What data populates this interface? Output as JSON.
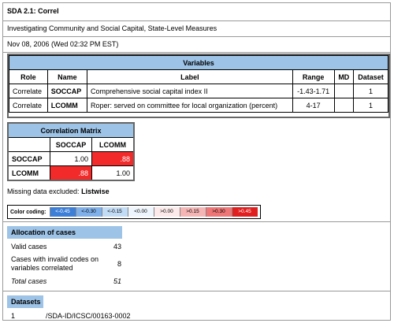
{
  "header": {
    "title": "SDA 2.1: Correl",
    "subtitle": "Investigating Community and Social Capital, State-Level Measures",
    "date": "Nov 08, 2006 (Wed 02:32 PM EST)"
  },
  "variables": {
    "heading": "Variables",
    "columns": [
      "Role",
      "Name",
      "Label",
      "Range",
      "MD",
      "Dataset"
    ],
    "rows": [
      {
        "role": "Correlate",
        "name": "SOCCAP",
        "label": "Comprehensive social capital index II",
        "range": "-1.43-1.71",
        "md": "",
        "dataset": "1"
      },
      {
        "role": "Correlate",
        "name": "LCOMM",
        "label": "Roper: served on committee for local organization (percent)",
        "range": "4-17",
        "md": "",
        "dataset": "1"
      }
    ]
  },
  "correlation": {
    "heading": "Correlation Matrix",
    "cols": [
      "SOCCAP",
      "LCOMM"
    ],
    "rows": [
      {
        "name": "SOCCAP",
        "values": [
          "1.00",
          ".88"
        ]
      },
      {
        "name": "LCOMM",
        "values": [
          ".88",
          "1.00"
        ]
      }
    ],
    "high_color": "#f22a2a"
  },
  "missing": {
    "label": "Missing data excluded:",
    "value": "Listwise"
  },
  "coding": {
    "label": "Color coding:",
    "swatches": [
      {
        "text": "<-0.45",
        "color": "#3d7fd6",
        "fg": "#ffffff"
      },
      {
        "text": "<-0.30",
        "color": "#7fb0ea",
        "fg": "#000000"
      },
      {
        "text": "<-0.15",
        "color": "#c2dcf5",
        "fg": "#000000"
      },
      {
        "text": "<0.00",
        "color": "#eef5fc",
        "fg": "#000000"
      },
      {
        "text": ">0.00",
        "color": "#fce9e9",
        "fg": "#000000"
      },
      {
        "text": ">0.15",
        "color": "#f5b5b5",
        "fg": "#000000"
      },
      {
        "text": ">0.30",
        "color": "#ee7676",
        "fg": "#000000"
      },
      {
        "text": ">0.45",
        "color": "#e02020",
        "fg": "#ffffff"
      }
    ]
  },
  "allocation": {
    "heading": "Allocation of cases",
    "valid_label": "Valid cases",
    "valid_value": "43",
    "invalid_label_1": "Cases with invalid codes on",
    "invalid_label_2": "variables correlated",
    "invalid_value": "8",
    "total_label": "Total cases",
    "total_value": "51"
  },
  "datasets": {
    "heading": "Datasets",
    "rows": [
      {
        "num": "1",
        "path": "/SDA-ID/ICSC/00163-0002"
      }
    ]
  },
  "colors": {
    "header_blue": "#9dc3e6"
  }
}
